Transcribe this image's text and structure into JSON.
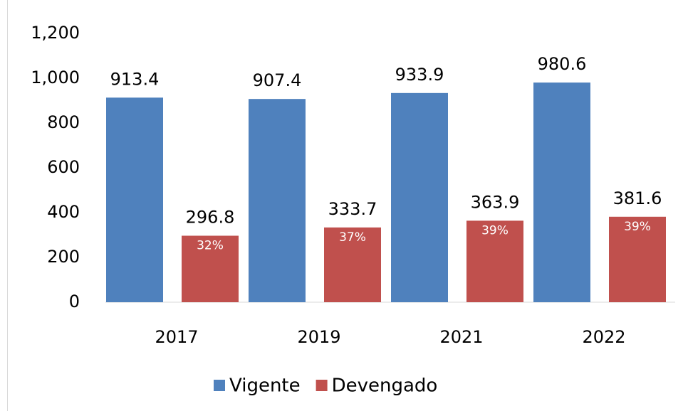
{
  "chart_data": {
    "type": "bar",
    "categories": [
      "2017",
      "2019",
      "2021",
      "2022"
    ],
    "series": [
      {
        "name": "Vigente",
        "color": "#4f81bd",
        "values": [
          913.4,
          907.4,
          933.9,
          980.6
        ]
      },
      {
        "name": "Devengado",
        "color": "#c0504d",
        "values": [
          296.8,
          333.7,
          363.9,
          381.6
        ],
        "inner_labels": [
          "32%",
          "37%",
          "39%",
          "39%"
        ]
      }
    ],
    "ylim": [
      0,
      1200
    ],
    "yticks": [
      0,
      200,
      400,
      600,
      800,
      {
        "value": 1000,
        "label": "1,000"
      },
      {
        "value": 1200,
        "label": "1,200"
      }
    ],
    "legend": "bottom"
  }
}
